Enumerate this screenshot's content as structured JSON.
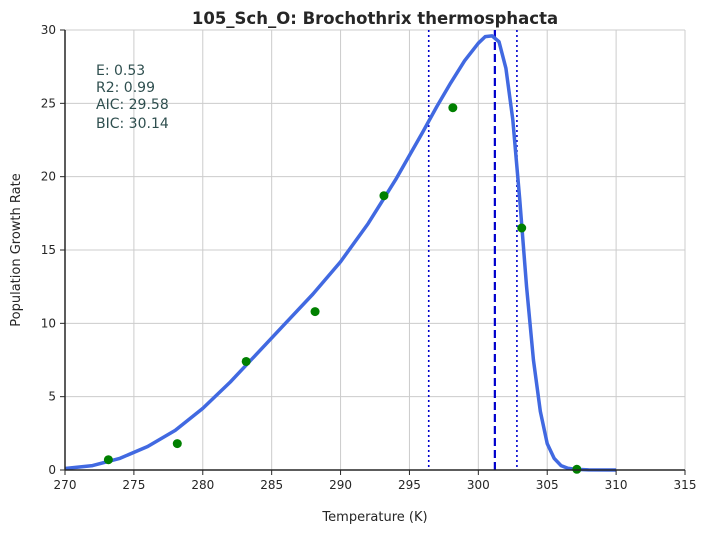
{
  "chart_data": {
    "type": "scatter",
    "title": "105_Sch_O: Brochothrix thermosphacta",
    "xlabel": "Temperature (K)",
    "ylabel": "Population Growth Rate",
    "xlim": [
      270,
      315
    ],
    "ylim": [
      0,
      30
    ],
    "x_ticks": [
      "270",
      "275",
      "280",
      "285",
      "290",
      "295",
      "300",
      "305",
      "310",
      "315"
    ],
    "y_ticks": [
      "0",
      "5",
      "10",
      "15",
      "20",
      "25",
      "30"
    ],
    "grid": true,
    "points": {
      "x": [
        273.15,
        278.15,
        283.15,
        288.15,
        293.15,
        298.15,
        303.15,
        307.15
      ],
      "y": [
        0.7,
        1.8,
        7.4,
        10.8,
        18.7,
        24.7,
        16.5,
        0.05
      ],
      "color": "#008000"
    },
    "fit_curve": {
      "color": "#4169e1",
      "x": [
        270,
        272,
        274,
        276,
        278,
        280,
        282,
        284,
        286,
        288,
        290,
        292,
        294,
        296,
        297,
        298,
        299,
        300,
        300.5,
        301,
        301.5,
        302,
        302.5,
        303,
        303.5,
        304,
        304.5,
        305,
        305.5,
        306,
        306.5,
        307,
        308,
        310
      ],
      "y": [
        0.1,
        0.3,
        0.8,
        1.6,
        2.7,
        4.2,
        6.0,
        8.0,
        10.0,
        12.0,
        14.2,
        16.8,
        19.8,
        23.1,
        24.8,
        26.4,
        27.9,
        29.1,
        29.55,
        29.6,
        29.2,
        27.4,
        23.9,
        18.5,
        12.5,
        7.5,
        4.0,
        1.8,
        0.8,
        0.3,
        0.12,
        0.05,
        0.01,
        0.0
      ]
    },
    "vlines": [
      {
        "x": 301.2,
        "style": "dashed",
        "color": "#0000cc"
      },
      {
        "x": 296.4,
        "style": "dotted",
        "color": "#0000cc"
      },
      {
        "x": 302.8,
        "style": "dotted",
        "color": "#0000cc"
      }
    ],
    "annotations": [
      "E:  0.53",
      "R2:  0.99",
      "AIC: 29.58",
      "BIC: 30.14"
    ],
    "annotation_color": "#2f4f4f"
  }
}
